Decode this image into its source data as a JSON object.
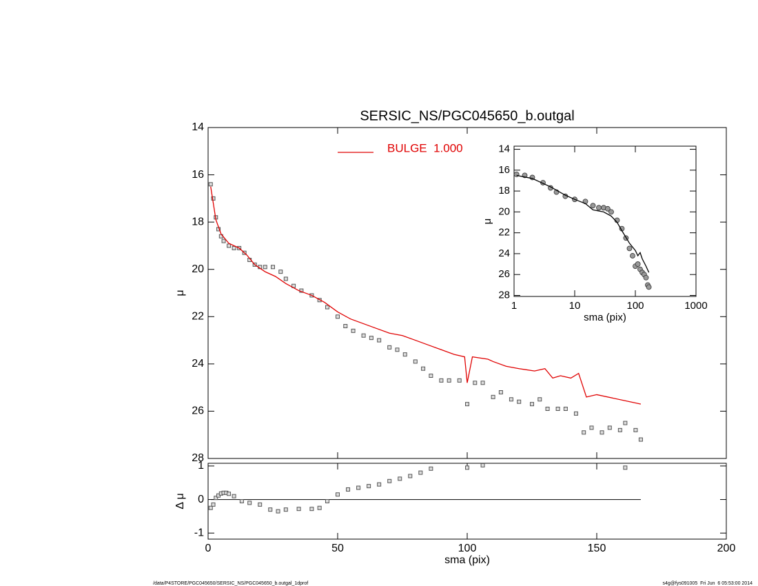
{
  "chart_data": [
    {
      "type": "scatter",
      "title": "SERSIC_NS/PGC045650_b.outgal",
      "ylabel": "μ",
      "xlim": [
        0,
        200
      ],
      "ylim": [
        14,
        28
      ],
      "y_inverted": true,
      "yticks": [
        14,
        16,
        18,
        20,
        22,
        24,
        26,
        28
      ],
      "legend": "top",
      "series": [
        {
          "style": "squares",
          "color": "#555555",
          "x": [
            1,
            2,
            3,
            4,
            5,
            6,
            8,
            10,
            12,
            14,
            16,
            18,
            20,
            22,
            25,
            28,
            30,
            33,
            36,
            40,
            43,
            46,
            50,
            53,
            56,
            60,
            63,
            66,
            70,
            73,
            76,
            80,
            83,
            86,
            90,
            93,
            97,
            100,
            103,
            106,
            110,
            113,
            117,
            120,
            125,
            128,
            131,
            135,
            138,
            142,
            145,
            148,
            152,
            155,
            159,
            161,
            165,
            167
          ],
          "values": [
            16.4,
            17.0,
            17.8,
            18.3,
            18.6,
            18.8,
            19.0,
            19.1,
            19.1,
            19.3,
            19.6,
            19.8,
            19.9,
            19.9,
            19.9,
            20.1,
            20.4,
            20.7,
            20.9,
            21.1,
            21.3,
            21.6,
            22.0,
            22.4,
            22.6,
            22.8,
            22.9,
            23.0,
            23.3,
            23.4,
            23.6,
            23.9,
            24.2,
            24.5,
            24.7,
            24.7,
            24.7,
            25.7,
            24.8,
            24.8,
            25.4,
            25.2,
            25.5,
            25.6,
            25.7,
            25.5,
            25.9,
            25.9,
            25.9,
            26.1,
            26.9,
            26.7,
            26.9,
            26.7,
            26.8,
            26.5,
            26.8,
            27.2
          ]
        },
        {
          "name": "BULGE  1.000",
          "style": "line",
          "color": "#e00000",
          "x": [
            1,
            2,
            3,
            5,
            8,
            12,
            15,
            18,
            22,
            26,
            30,
            35,
            40,
            45,
            50,
            55,
            60,
            65,
            70,
            75,
            80,
            85,
            90,
            95,
            99,
            100,
            102,
            108,
            110,
            115,
            120,
            126,
            130,
            133,
            136,
            140,
            143,
            146,
            150,
            167
          ],
          "values": [
            16.5,
            17.2,
            17.9,
            18.5,
            18.9,
            19.1,
            19.4,
            19.8,
            20.1,
            20.3,
            20.6,
            20.9,
            21.1,
            21.4,
            21.8,
            22.1,
            22.3,
            22.5,
            22.7,
            22.8,
            23.0,
            23.2,
            23.4,
            23.6,
            23.7,
            24.8,
            23.7,
            23.8,
            23.9,
            24.1,
            24.2,
            24.3,
            24.2,
            24.6,
            24.5,
            24.6,
            24.4,
            25.4,
            25.3,
            25.7
          ]
        }
      ]
    },
    {
      "type": "scatter",
      "xlabel": "sma (pix)",
      "ylabel": "Δ μ",
      "xlim": [
        0,
        200
      ],
      "xticks": [
        0,
        50,
        100,
        150,
        200
      ],
      "ylim": [
        -1.18,
        1.08
      ],
      "yticks": [
        -1,
        0,
        1
      ],
      "series": [
        {
          "style": "squares",
          "color": "#555555",
          "x": [
            1,
            2,
            3,
            4,
            5,
            6,
            7,
            8,
            10,
            13,
            16,
            20,
            24,
            27,
            30,
            35,
            40,
            43,
            46,
            50,
            54,
            58,
            62,
            66,
            70,
            74,
            78,
            82,
            86,
            100,
            106,
            161,
            167
          ],
          "values": [
            -0.25,
            -0.15,
            0.05,
            0.12,
            0.18,
            0.2,
            0.2,
            0.17,
            0.1,
            -0.05,
            -0.1,
            -0.15,
            -0.3,
            -0.35,
            -0.3,
            -0.28,
            -0.28,
            -0.25,
            -0.05,
            0.15,
            0.3,
            0.35,
            0.4,
            0.45,
            0.55,
            0.62,
            0.7,
            0.8,
            0.92,
            0.95,
            1.02,
            0.95,
            null
          ]
        }
      ]
    },
    {
      "type": "scatter",
      "xlabel": "sma (pix)",
      "ylabel": "μ",
      "xscale": "log",
      "xlim": [
        1,
        1000
      ],
      "xticks": [
        1,
        10,
        100,
        1000
      ],
      "ylim": [
        13.7,
        28.1
      ],
      "y_inverted": true,
      "yticks": [
        14,
        16,
        18,
        20,
        22,
        24,
        26,
        28
      ],
      "series": [
        {
          "style": "circles",
          "color": "#999999",
          "x": [
            1.1,
            1.5,
            2,
            3,
            4,
            5,
            7,
            10,
            15,
            20,
            25,
            30,
            35,
            40,
            50,
            60,
            70,
            80,
            90,
            100,
            110,
            120,
            130,
            140,
            150,
            160,
            167
          ],
          "values": [
            16.4,
            16.5,
            16.7,
            17.2,
            17.7,
            18.1,
            18.5,
            18.8,
            19.0,
            19.4,
            19.6,
            19.6,
            19.7,
            20.0,
            20.8,
            21.6,
            22.5,
            23.5,
            24.2,
            25.2,
            25.0,
            25.5,
            25.8,
            26.0,
            26.3,
            27.0,
            27.2
          ]
        },
        {
          "style": "line",
          "color": "#000000",
          "x": [
            1.1,
            2,
            4,
            7,
            10,
            15,
            20,
            30,
            40,
            50,
            60,
            80,
            100,
            110,
            120,
            130,
            150,
            167
          ],
          "values": [
            16.5,
            16.8,
            17.6,
            18.4,
            18.8,
            19.2,
            19.8,
            20.0,
            20.4,
            21.0,
            21.8,
            23.0,
            23.7,
            24.2,
            23.9,
            24.5,
            25.2,
            25.8
          ]
        }
      ]
    }
  ],
  "footer": {
    "left": "/data/P4STORE/PGC045650/SERSIC_NS/PGC045650_b.outgal_1dprof",
    "right": "s4g@fys091005  Fri Jun  6 05:53:00 2014"
  }
}
